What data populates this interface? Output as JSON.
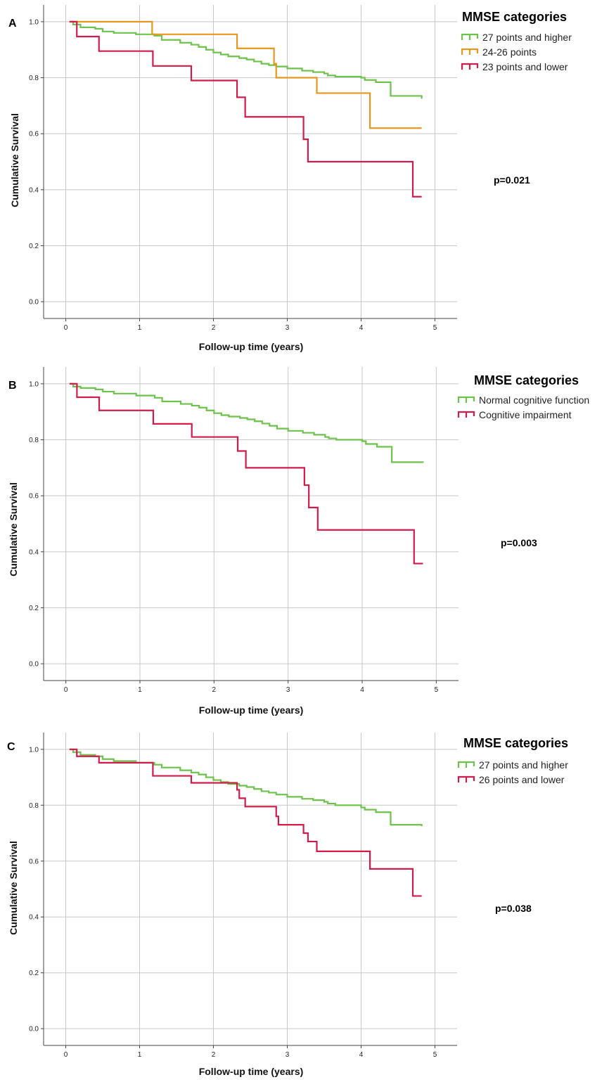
{
  "colors": {
    "green": "#6cc24a",
    "orange": "#e8961e",
    "crimson": "#d01c4a"
  },
  "chart_data": [
    {
      "type": "line",
      "panel": "A",
      "xlabel": "Follow-up time (years)",
      "ylabel": "Cumulative Survival",
      "xlim": [
        -0.3,
        5.3
      ],
      "ylim": [
        -0.06,
        1.06
      ],
      "xticks": [
        "0",
        "1",
        "2",
        "3",
        "4",
        "5"
      ],
      "yticks": [
        "0.0",
        "0.2",
        "0.4",
        "0.6",
        "0.8",
        "1.0"
      ],
      "grid": true,
      "legend_title": "MMSE categories",
      "legend_position": "top-right",
      "annotation": "p=0.021",
      "series": [
        {
          "name": "27 points and higher",
          "color": "#6cc24a",
          "x": [
            0.05,
            0.1,
            0.2,
            0.4,
            0.5,
            0.65,
            0.95,
            1.2,
            1.3,
            1.55,
            1.7,
            1.8,
            1.9,
            2.0,
            2.1,
            2.2,
            2.35,
            2.45,
            2.55,
            2.65,
            2.75,
            2.85,
            3.0,
            3.2,
            3.35,
            3.5,
            3.55,
            3.65,
            4.0,
            4.05,
            4.2,
            4.4,
            4.4,
            4.82
          ],
          "y": [
            1.0,
            0.99,
            0.98,
            0.975,
            0.965,
            0.96,
            0.955,
            0.95,
            0.935,
            0.925,
            0.918,
            0.91,
            0.9,
            0.89,
            0.883,
            0.876,
            0.87,
            0.865,
            0.858,
            0.85,
            0.845,
            0.84,
            0.833,
            0.825,
            0.82,
            0.815,
            0.808,
            0.804,
            0.8,
            0.792,
            0.784,
            0.775,
            0.735,
            0.725
          ]
        },
        {
          "name": "24-26 points",
          "color": "#e8961e",
          "x": [
            0.05,
            1.17,
            2.32,
            2.82,
            2.85,
            3.4,
            4.12,
            4.82
          ],
          "y": [
            1.0,
            0.955,
            0.905,
            0.85,
            0.8,
            0.745,
            0.62,
            0.62
          ]
        },
        {
          "name": "23 points and lower",
          "color": "#d01c4a",
          "x": [
            0.05,
            0.15,
            0.45,
            1.18,
            1.7,
            2.32,
            2.43,
            3.22,
            3.28,
            4.7,
            4.82
          ],
          "y": [
            1.0,
            0.947,
            0.895,
            0.842,
            0.79,
            0.73,
            0.66,
            0.58,
            0.5,
            0.375,
            0.375
          ]
        }
      ]
    },
    {
      "type": "line",
      "panel": "B",
      "xlabel": "Follow-up time (years)",
      "ylabel": "Cumulative Survival",
      "xlim": [
        -0.3,
        5.3
      ],
      "ylim": [
        -0.06,
        1.06
      ],
      "xticks": [
        "0",
        "1",
        "2",
        "3",
        "4",
        "5"
      ],
      "yticks": [
        "0.0",
        "0.2",
        "0.4",
        "0.6",
        "0.8",
        "1.0"
      ],
      "grid": true,
      "legend_title": "MMSE categories",
      "legend_position": "top-right",
      "annotation": "p=0.003",
      "series": [
        {
          "name": "Normal cognitive function",
          "color": "#6cc24a",
          "x": [
            0.05,
            0.1,
            0.2,
            0.4,
            0.5,
            0.65,
            0.95,
            1.2,
            1.3,
            1.55,
            1.7,
            1.8,
            1.9,
            2.0,
            2.1,
            2.2,
            2.35,
            2.45,
            2.55,
            2.65,
            2.75,
            2.85,
            3.0,
            3.2,
            3.35,
            3.5,
            3.55,
            3.65,
            4.0,
            4.05,
            4.2,
            4.4,
            4.4,
            4.82
          ],
          "y": [
            1.0,
            0.99,
            0.985,
            0.98,
            0.972,
            0.965,
            0.958,
            0.95,
            0.937,
            0.928,
            0.922,
            0.915,
            0.905,
            0.895,
            0.888,
            0.883,
            0.878,
            0.873,
            0.866,
            0.858,
            0.85,
            0.84,
            0.832,
            0.825,
            0.818,
            0.81,
            0.805,
            0.8,
            0.795,
            0.785,
            0.775,
            0.76,
            0.72,
            0.718
          ]
        },
        {
          "name": "Cognitive impairment",
          "color": "#d01c4a",
          "x": [
            0.05,
            0.15,
            0.45,
            1.18,
            1.7,
            2.32,
            2.43,
            3.22,
            3.28,
            3.4,
            4.7,
            4.82
          ],
          "y": [
            1.0,
            0.952,
            0.905,
            0.857,
            0.81,
            0.76,
            0.7,
            0.638,
            0.558,
            0.478,
            0.358,
            0.358
          ]
        }
      ]
    },
    {
      "type": "line",
      "panel": "C",
      "xlabel": "Follow-up time (years)",
      "ylabel": "Cumulative Survival",
      "xlim": [
        -0.3,
        5.3
      ],
      "ylim": [
        -0.06,
        1.06
      ],
      "xticks": [
        "0",
        "1",
        "2",
        "3",
        "4",
        "5"
      ],
      "yticks": [
        "0.0",
        "0.2",
        "0.4",
        "0.6",
        "0.8",
        "1.0"
      ],
      "grid": true,
      "legend_title": "MMSE categories",
      "legend_position": "top-right",
      "annotation": "p=0.038",
      "series": [
        {
          "name": "27 points and higher",
          "color": "#6cc24a",
          "x": [
            0.05,
            0.1,
            0.2,
            0.4,
            0.5,
            0.65,
            0.95,
            1.2,
            1.3,
            1.55,
            1.7,
            1.8,
            1.9,
            2.0,
            2.1,
            2.2,
            2.35,
            2.45,
            2.55,
            2.65,
            2.75,
            2.85,
            3.0,
            3.2,
            3.35,
            3.5,
            3.55,
            3.65,
            4.0,
            4.05,
            4.2,
            4.4,
            4.4,
            4.82
          ],
          "y": [
            1.0,
            0.99,
            0.98,
            0.975,
            0.965,
            0.958,
            0.952,
            0.945,
            0.935,
            0.925,
            0.917,
            0.91,
            0.9,
            0.89,
            0.883,
            0.876,
            0.87,
            0.865,
            0.858,
            0.85,
            0.845,
            0.838,
            0.83,
            0.823,
            0.818,
            0.812,
            0.806,
            0.8,
            0.792,
            0.784,
            0.775,
            0.765,
            0.73,
            0.725
          ]
        },
        {
          "name": "26 points and lower",
          "color": "#d01c4a",
          "x": [
            0.05,
            0.15,
            0.45,
            1.18,
            1.7,
            2.32,
            2.35,
            2.43,
            2.85,
            2.88,
            3.22,
            3.28,
            3.4,
            4.12,
            4.7,
            4.82
          ],
          "y": [
            1.0,
            0.975,
            0.952,
            0.905,
            0.88,
            0.855,
            0.825,
            0.795,
            0.76,
            0.73,
            0.7,
            0.67,
            0.635,
            0.572,
            0.475,
            0.475
          ]
        }
      ]
    }
  ]
}
